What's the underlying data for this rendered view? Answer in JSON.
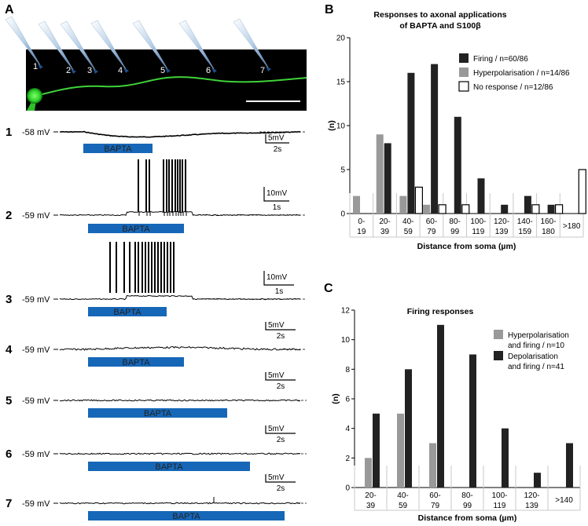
{
  "panel_labels": {
    "a": "A",
    "b": "B",
    "c": "C"
  },
  "panel_a": {
    "pipettes": [
      "1",
      "2",
      "3",
      "4",
      "5",
      "6",
      "7"
    ],
    "traces": [
      {
        "label": "1",
        "vm": "-58 mV",
        "bar": "BAPTA",
        "scale_y": "5mV",
        "scale_x": "2s"
      },
      {
        "label": "2",
        "vm": "-59 mV",
        "bar": "BAPTA",
        "scale_y": "10mV",
        "scale_x": "1s"
      },
      {
        "label": "3",
        "vm": "-59 mV",
        "bar": "BAPTA",
        "scale_y": "10mV",
        "scale_x": "1s"
      },
      {
        "label": "4",
        "vm": "-59 mV",
        "bar": "BAPTA",
        "scale_y": "5mV",
        "scale_x": "2s"
      },
      {
        "label": "5",
        "vm": "-59 mV",
        "bar": "BAPTA",
        "scale_y": "5mV",
        "scale_x": "2s"
      },
      {
        "label": "6",
        "vm": "-59 mV",
        "bar": "BAPTA",
        "scale_y": "5mV",
        "scale_x": "2s"
      },
      {
        "label": "7",
        "vm": "-59 mV",
        "bar": "BAPTA",
        "scale_y": "5mV",
        "scale_x": "2s"
      }
    ]
  },
  "chart_data": [
    {
      "id": "B",
      "type": "bar",
      "title": "Responses to axonal applications",
      "subtitle": "of BAPTA and S100β",
      "xlabel": "Distance from soma (µm)",
      "ylabel": "(n)",
      "ylim": [
        0,
        20
      ],
      "yticks": [
        0,
        5,
        10,
        15,
        20
      ],
      "categories": [
        [
          "0-",
          "19"
        ],
        [
          "20-",
          "39"
        ],
        [
          "40-",
          "59"
        ],
        [
          "60-",
          "79"
        ],
        [
          "80-",
          "99"
        ],
        [
          "100-",
          "119"
        ],
        [
          "120-",
          "139"
        ],
        [
          "140-",
          "159"
        ],
        [
          "160-",
          "180"
        ],
        [
          ">180"
        ]
      ],
      "series": [
        {
          "name": "Firing / n=60/86",
          "color": "#222222",
          "values": [
            0,
            8,
            16,
            17,
            11,
            4,
            1,
            2,
            1,
            0
          ]
        },
        {
          "name": "Hyperpolarisation / n=14/86",
          "color": "#999999",
          "values": [
            2,
            9,
            2,
            1,
            0,
            0,
            0,
            0,
            0,
            0
          ]
        },
        {
          "name": "No response / n=12/86",
          "color": "#ffffff",
          "values": [
            0,
            0,
            3,
            1,
            1,
            0,
            0,
            1,
            1,
            5
          ]
        }
      ]
    },
    {
      "id": "C",
      "type": "bar",
      "title": "Firing responses",
      "xlabel": "Distance from soma (µm)",
      "ylabel": "(n)",
      "ylim": [
        0,
        12
      ],
      "yticks": [
        0,
        2,
        4,
        6,
        8,
        10,
        12
      ],
      "categories": [
        [
          "20-",
          "39"
        ],
        [
          "40-",
          "59"
        ],
        [
          "60-",
          "79"
        ],
        [
          "80-",
          "99"
        ],
        [
          "100-",
          "119"
        ],
        [
          "120-",
          "139"
        ],
        [
          ">140"
        ]
      ],
      "series": [
        {
          "name": "Hyperpolarisation and firing / n=10",
          "legend_lines": [
            "Hyperpolarisation",
            "and firing / n=10"
          ],
          "color": "#999999",
          "values": [
            2,
            5,
            3,
            0,
            0,
            0,
            0
          ]
        },
        {
          "name": "Depolarisation and firing / n=41",
          "legend_lines": [
            "Depolarisation",
            "and firing / n=41"
          ],
          "color": "#222222",
          "values": [
            5,
            8,
            11,
            9,
            4,
            1,
            3
          ]
        }
      ]
    }
  ],
  "colors": {
    "bapta_bar": "#1667b8",
    "axon": "#3fd23a",
    "micrograph_bg": "#000000",
    "pipette": "#8fb6d8"
  }
}
